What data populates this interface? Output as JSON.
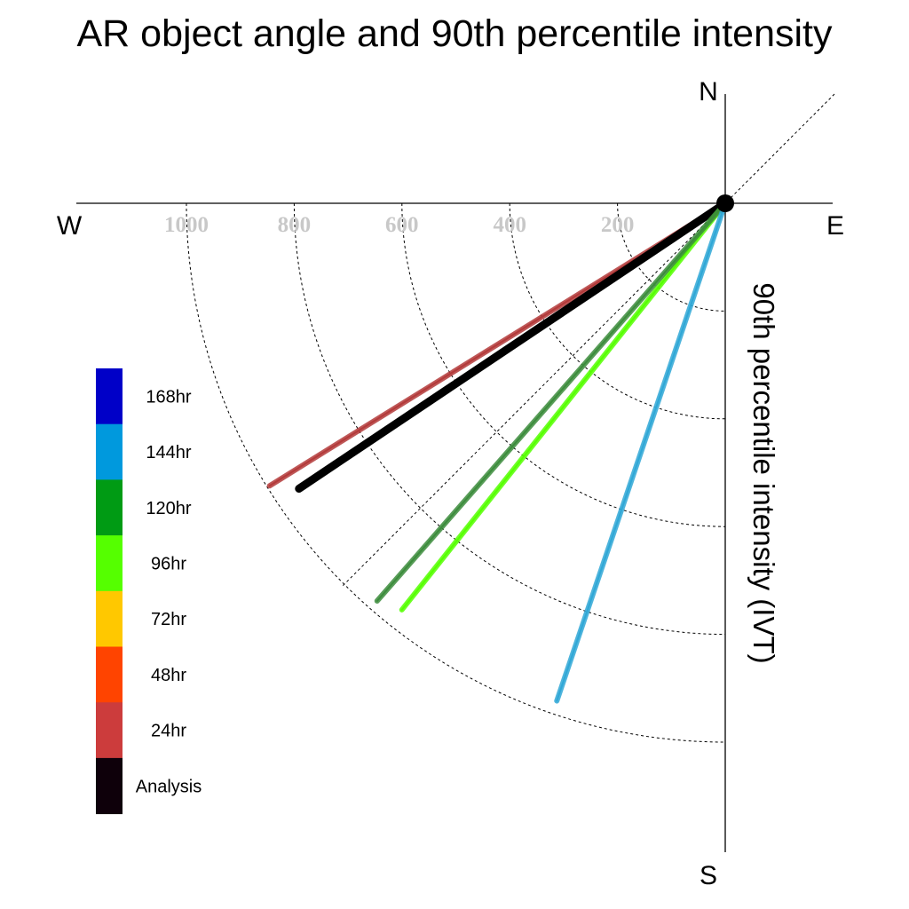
{
  "chart_data": {
    "type": "polar-vector",
    "title": "AR object angle and 90th percentile intensity",
    "radial_axis_label": "90th percentile intensity (IVT)",
    "radial_ticks": [
      "1000",
      "800",
      "600",
      "400",
      "200"
    ],
    "radial_tick_values": [
      1000,
      800,
      600,
      400,
      200
    ],
    "radial_grid_values": [
      200,
      400,
      600,
      800,
      1000
    ],
    "radial_max": 1000,
    "compass": {
      "north": "N",
      "south": "S",
      "east": "E",
      "west": "W"
    },
    "legend": [
      {
        "label": "168hr",
        "color": "#0000c8"
      },
      {
        "label": "144hr",
        "color": "#0099dd"
      },
      {
        "label": "120hr",
        "color": "#009b14"
      },
      {
        "label": "96hr",
        "color": "#55ff00"
      },
      {
        "label": "72hr",
        "color": "#ffc800"
      },
      {
        "label": "48hr",
        "color": "#ff4400"
      },
      {
        "label": "24hr",
        "color": "#cc3c3c"
      },
      {
        "label": "Analysis",
        "color": "#0e000a"
      }
    ],
    "series": [
      {
        "name": "24hr",
        "color": "#b33a3a",
        "angle_deg": 211.8,
        "value": 995
      },
      {
        "name": "Analysis",
        "color": "#000000",
        "angle_deg": 213.8,
        "value": 952
      },
      {
        "name": "96hr",
        "color": "#55ff00",
        "angle_deg": 231.5,
        "value": 964
      },
      {
        "name": "120hr",
        "color": "#3c8c3c",
        "angle_deg": 228.8,
        "value": 981
      },
      {
        "name": "144hr",
        "color": "#2fa7d6",
        "angle_deg": 251.3,
        "value": 975
      }
    ]
  }
}
